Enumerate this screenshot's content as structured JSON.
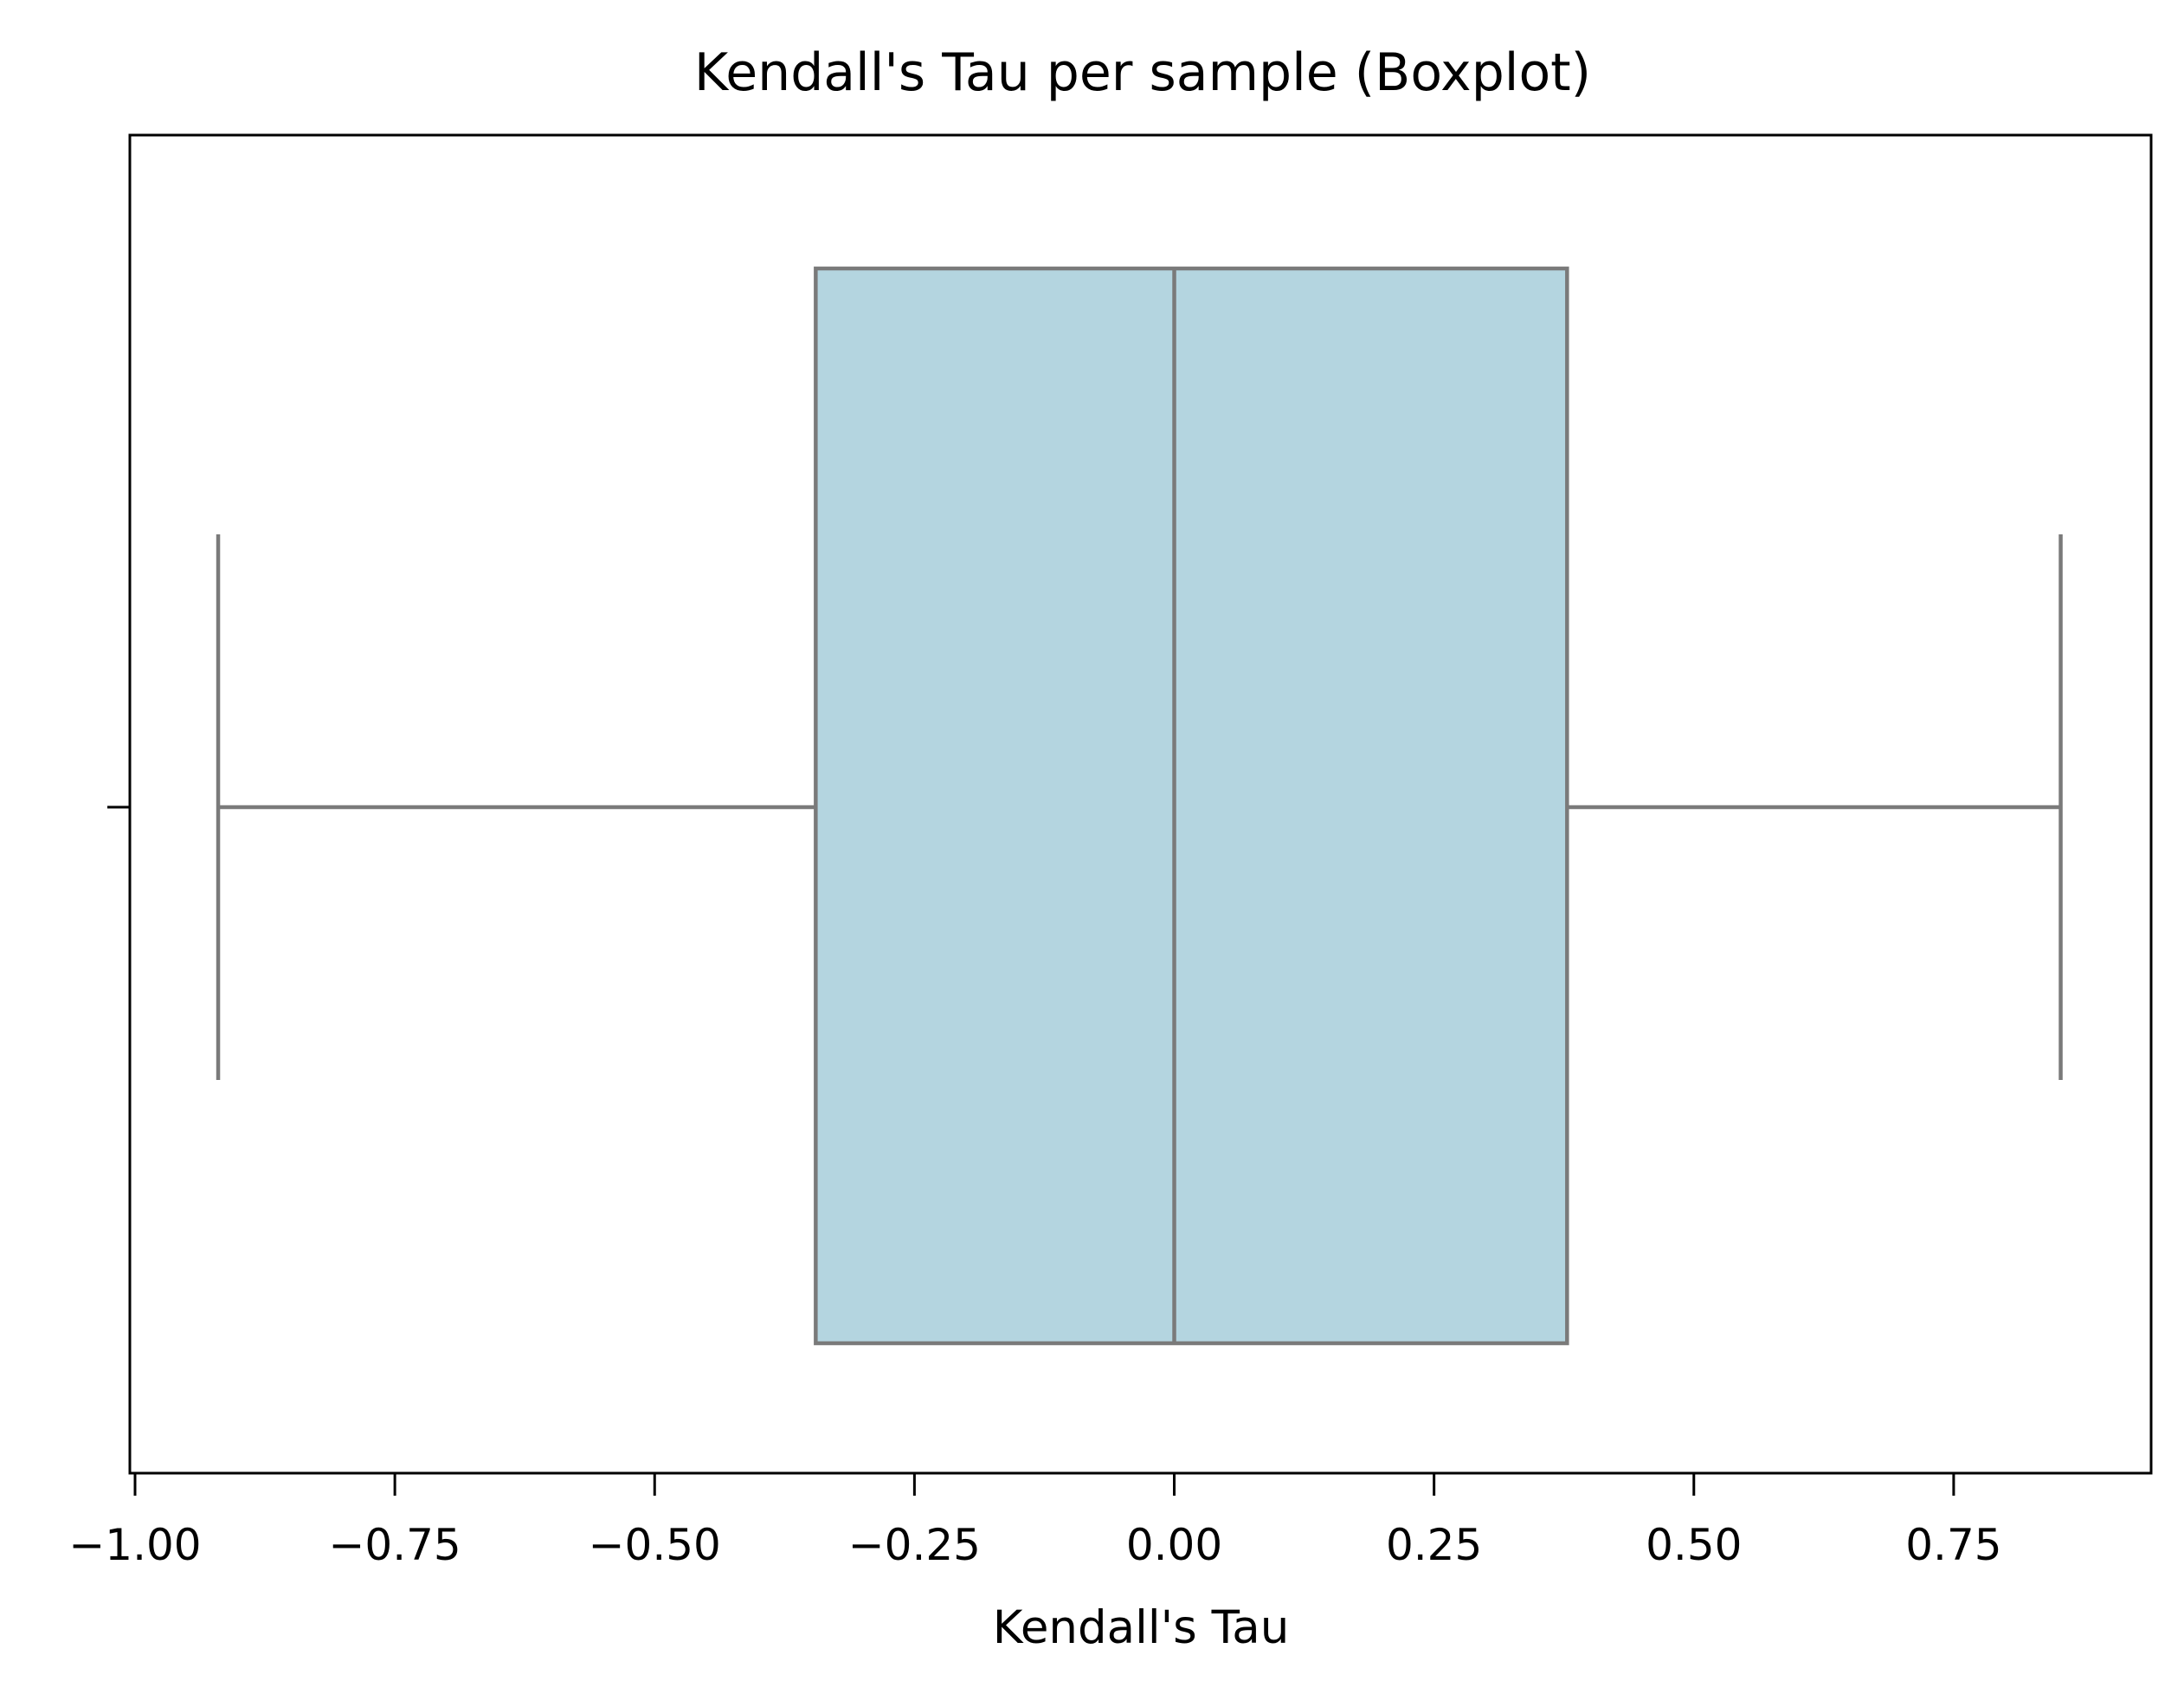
{
  "chart_data": {
    "type": "box",
    "title": "Kendall's Tau per sample (Boxplot)",
    "xlabel": "Kendall's Tau",
    "ylabel": "",
    "xlim": [
      -1.005,
      0.94
    ],
    "x_ticks": [
      -1.0,
      -0.75,
      -0.5,
      -0.25,
      0.0,
      0.25,
      0.5,
      0.75
    ],
    "x_tick_labels": [
      "−1.00",
      "−0.75",
      "−0.50",
      "−0.25",
      "0.00",
      "0.25",
      "0.50",
      "0.75"
    ],
    "grid": false,
    "orientation": "horizontal",
    "box": {
      "whisker_low": -0.92,
      "q1": -0.345,
      "median": 0.0,
      "q3": 0.378,
      "whisker_high": 0.853
    },
    "colors": {
      "box_fill": "#b4d5e0",
      "box_edge": "#7a7a7a",
      "axes": "#000000"
    }
  }
}
